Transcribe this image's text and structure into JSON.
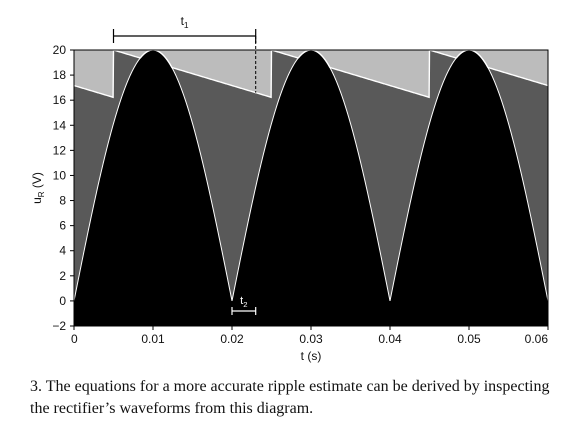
{
  "chart_data": {
    "type": "area",
    "title": "",
    "xlabel": "t (s)",
    "ylabel_main": "u",
    "ylabel_sub": "R",
    "ylabel_unit": " (V)",
    "xlim": [
      0,
      0.06
    ],
    "ylim": [
      -2,
      20
    ],
    "x_ticks": [
      0,
      0.01,
      0.02,
      0.03,
      0.04,
      0.05,
      0.06
    ],
    "x_tick_labels": [
      "0",
      "0.01",
      "0.02",
      "0.03",
      "0.04",
      "0.05",
      "0.06"
    ],
    "y_ticks": [
      -2,
      0,
      2,
      4,
      6,
      8,
      10,
      12,
      14,
      16,
      18,
      20
    ],
    "y_tick_labels": [
      "−2",
      "0",
      "2",
      "4",
      "6",
      "8",
      "10",
      "12",
      "14",
      "16",
      "18",
      "20"
    ],
    "grid": false,
    "series": [
      {
        "peak_voltage": 20,
        "period": 0.02,
        "peak_times": [
          0.005,
          0.025,
          0.045
        ],
        "decay_end_voltage": 16.6,
        "decay_end_times": [
          0.023,
          0.043
        ]
      }
    ],
    "annotations": [
      {
        "label_main": "t",
        "label_sub": "1",
        "from": 0.005,
        "to": 0.023
      },
      {
        "label_main": "t",
        "label_sub": "2",
        "from": 0.02,
        "to": 0.023
      }
    ],
    "colors": {
      "background_band": "#bcbcbc",
      "capacitor_region": "#595959",
      "rectified_region": "#000000",
      "outline": "#ffffff"
    }
  },
  "caption": "3. The equations for a more accurate ripple estimate can be derived by inspecting the rectifier’s waveforms from this diagram."
}
